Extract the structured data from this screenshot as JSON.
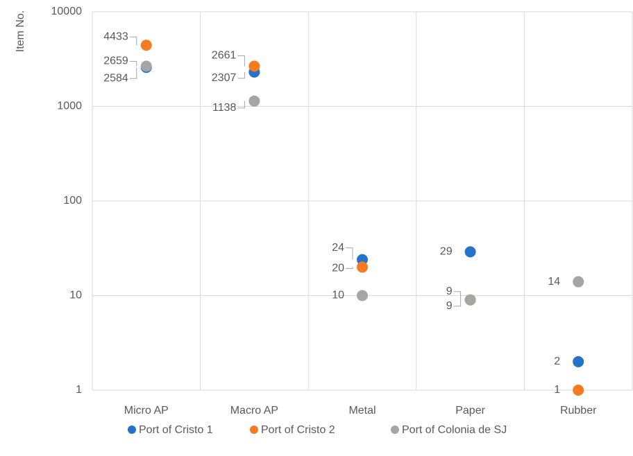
{
  "chart_data": {
    "type": "scatter",
    "y_label": "Item No.",
    "categories": [
      "Micro AP",
      "Macro AP",
      "Metal",
      "Paper",
      "Rubber"
    ],
    "series": [
      {
        "name": "Port of Cristo 1",
        "color": "#2473c9",
        "values": [
          2584,
          2307,
          24,
          29,
          2
        ]
      },
      {
        "name": "Port of Cristo 2",
        "color": "#f47b20",
        "values": [
          4433,
          2661,
          20,
          9,
          1
        ]
      },
      {
        "name": "Port of Colonia de SJ",
        "color": "#a5a5a5",
        "values": [
          2659,
          1138,
          10,
          9,
          14
        ]
      }
    ],
    "ylim": [
      1,
      10000
    ],
    "yticks": [
      1,
      10,
      100,
      1000,
      10000
    ],
    "log_scale": true,
    "grid": true,
    "legend": "bottom"
  }
}
